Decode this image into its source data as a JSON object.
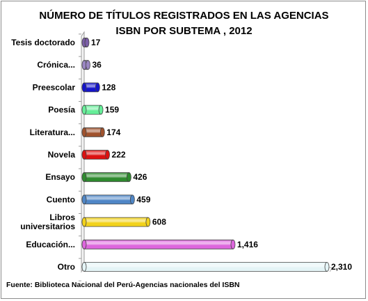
{
  "chart_data": {
    "type": "bar",
    "orientation": "horizontal",
    "title": [
      "NÚMERO DE TÍTULOS REGISTRADOS EN LAS AGENCIAS",
      "ISBN POR SUBTEMA , 2012"
    ],
    "source": "Fuente: Biblioteca Nacional del Perú-Agencias nacionales del ISBN",
    "categories": [
      "Tesis doctorado",
      "Crónica...",
      "Preescolar",
      "Poesía",
      "Literatura...",
      "Novela",
      "Ensayo",
      "Cuento",
      "Libros universitarios",
      "Educación...",
      "Otro"
    ],
    "category_lines": [
      [
        "Tesis doctorado"
      ],
      [
        "Crónica..."
      ],
      [
        "Preescolar"
      ],
      [
        "Poesía"
      ],
      [
        "Literatura..."
      ],
      [
        "Novela"
      ],
      [
        "Ensayo"
      ],
      [
        "Cuento"
      ],
      [
        "Libros",
        "universitarios"
      ],
      [
        "Educación..."
      ],
      [
        "Otro"
      ]
    ],
    "values": [
      17,
      36,
      128,
      159,
      174,
      222,
      426,
      459,
      608,
      1416,
      2310
    ],
    "value_labels": [
      "17",
      "36",
      "128",
      "159",
      "174",
      "222",
      "426",
      "459",
      "608",
      "1,416",
      "2,310"
    ],
    "colors": [
      "#7b5ea7",
      "#9a86c2",
      "#1414cc",
      "#66ee99",
      "#a0522d",
      "#dd1111",
      "#2e8b2e",
      "#4f86c6",
      "#f2d21b",
      "#dd66dd",
      "#e4f4f6"
    ],
    "xlim": [
      0,
      2310
    ],
    "grid": false,
    "legend": "none"
  }
}
